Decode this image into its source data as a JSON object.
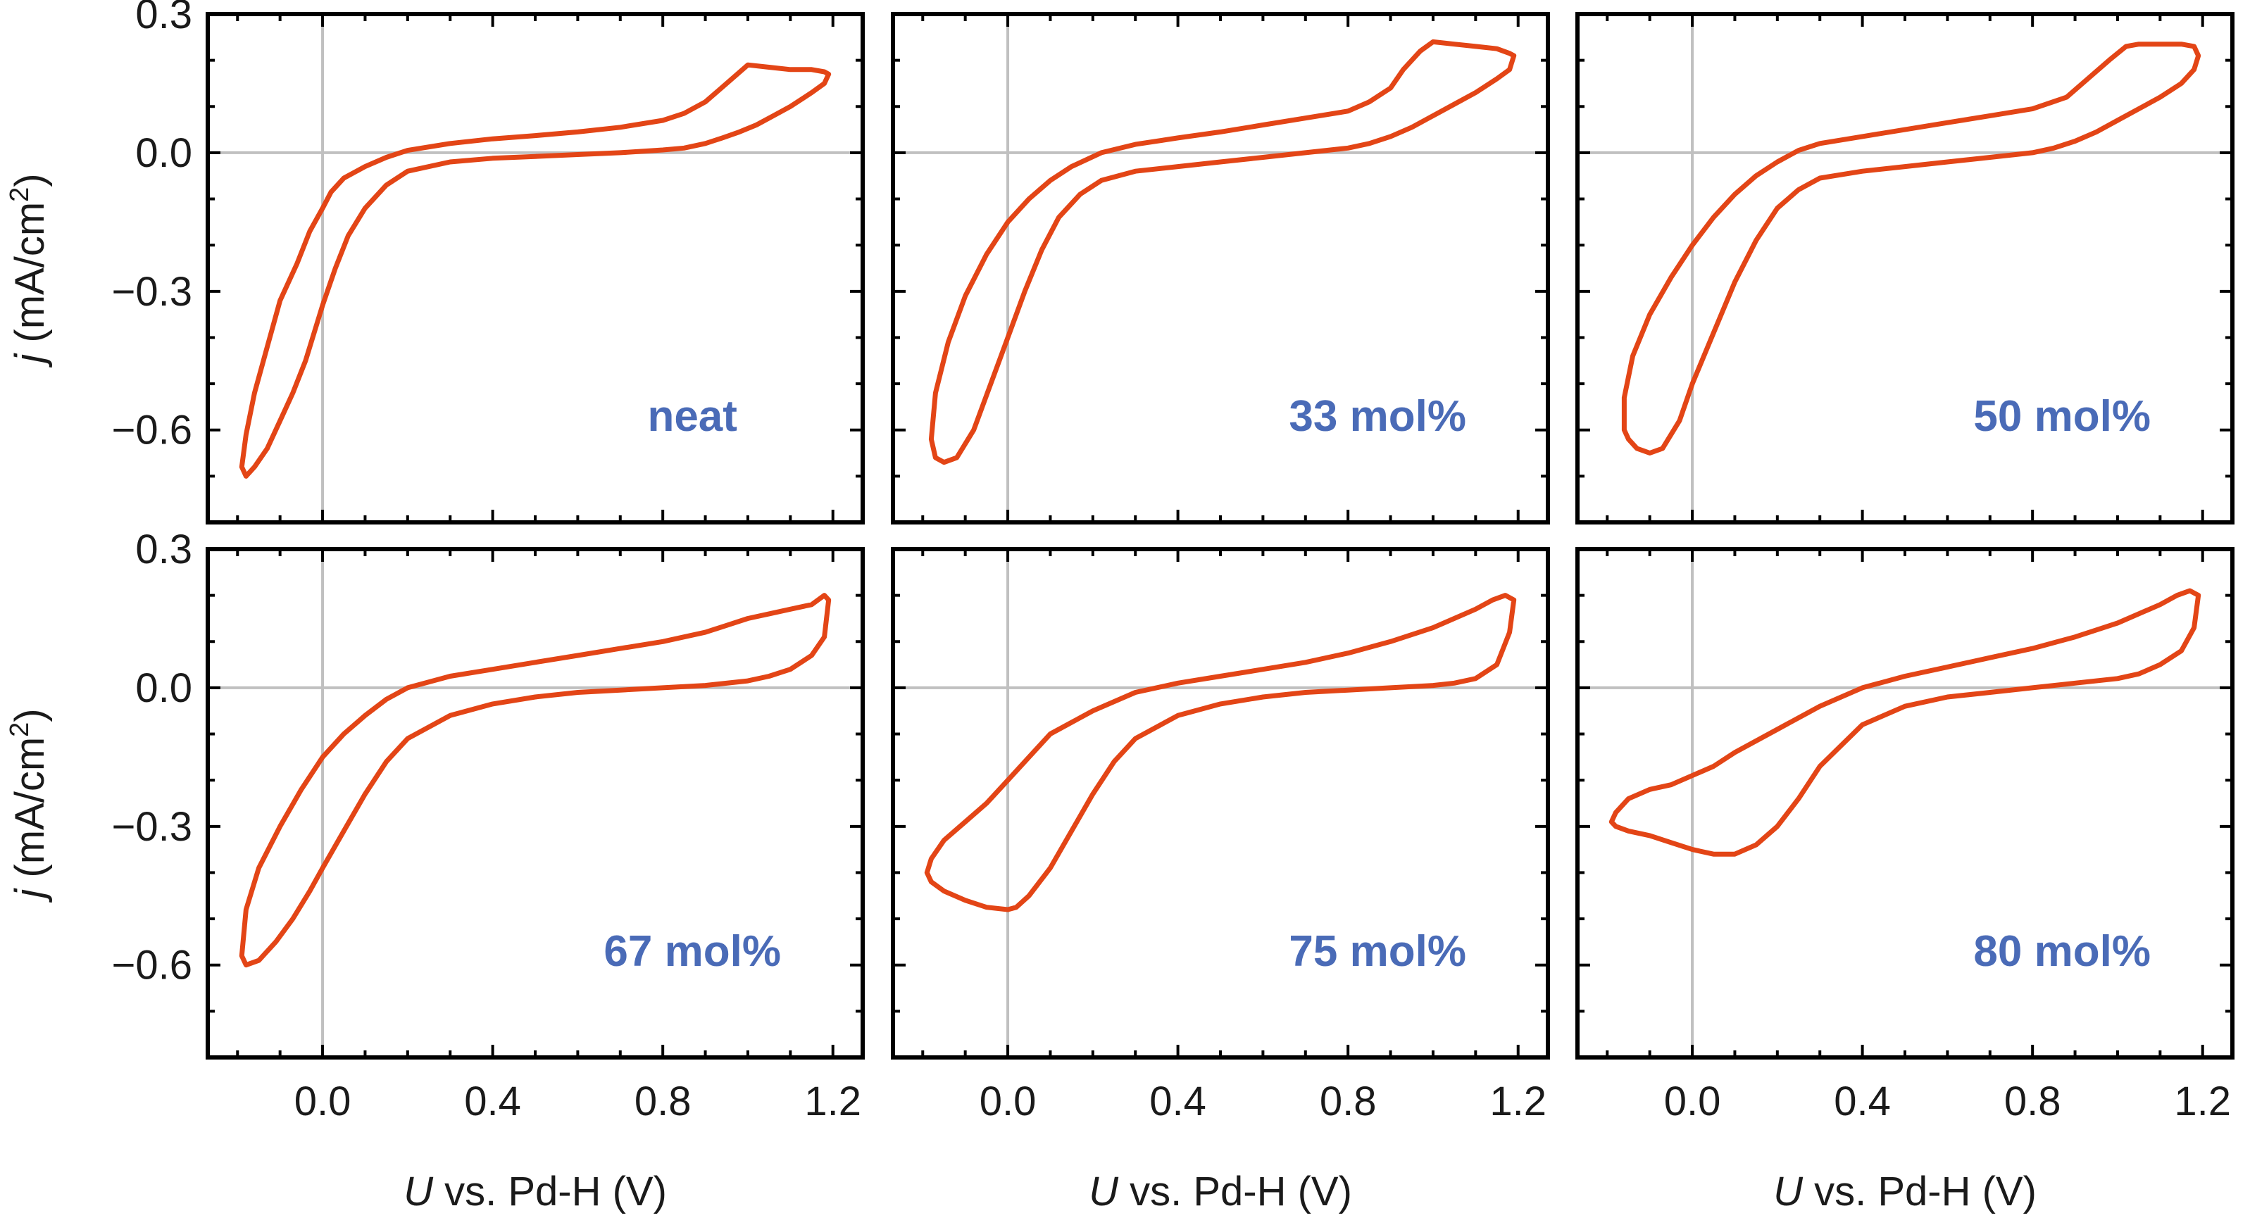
{
  "chart_data": {
    "type": "line",
    "layout": "2x3 panel grid, shared axes",
    "xlabel_italic": "U",
    "xlabel_rest": " vs. Pd-H (V)",
    "ylabel_italic": "j",
    "ylabel_rest": " (mA/cm",
    "ylabel_sup": "2",
    "ylabel_close": ")",
    "xlim": [
      -0.27,
      1.27
    ],
    "ylim": [
      -0.8,
      0.3
    ],
    "xticks": [
      0.0,
      0.4,
      0.8,
      1.2
    ],
    "xtick_labels": [
      "0.0",
      "0.4",
      "0.8",
      "1.2"
    ],
    "yticks": [
      0.3,
      0.0,
      -0.3,
      -0.6
    ],
    "ytick_labels": [
      "0.3",
      "0.0",
      "−0.3",
      "−0.6"
    ],
    "reference_lines": {
      "x": 0.0,
      "y": 0.0
    },
    "line_color": "#e34516",
    "label_color": "#4a6bb7",
    "panels": [
      {
        "label": "neat",
        "x": [
          -0.19,
          -0.18,
          -0.16,
          -0.13,
          -0.1,
          -0.07,
          -0.04,
          -0.02,
          0.0,
          0.03,
          0.06,
          0.1,
          0.15,
          0.2,
          0.3,
          0.4,
          0.5,
          0.6,
          0.7,
          0.8,
          0.85,
          0.9,
          0.94,
          0.98,
          1.02,
          1.06,
          1.1,
          1.15,
          1.18,
          1.19,
          1.18,
          1.15,
          1.1,
          1.05,
          1.0,
          0.95,
          0.9,
          0.85,
          0.8,
          0.7,
          0.6,
          0.5,
          0.4,
          0.3,
          0.2,
          0.15,
          0.1,
          0.05,
          0.02,
          0.0,
          -0.03,
          -0.06,
          -0.1,
          -0.13,
          -0.16,
          -0.18,
          -0.19
        ],
        "y": [
          -0.68,
          -0.7,
          -0.68,
          -0.64,
          -0.58,
          -0.52,
          -0.45,
          -0.39,
          -0.33,
          -0.25,
          -0.18,
          -0.12,
          -0.07,
          -0.04,
          -0.02,
          -0.012,
          -0.008,
          -0.004,
          0.0,
          0.006,
          0.01,
          0.02,
          0.032,
          0.045,
          0.06,
          0.08,
          0.1,
          0.13,
          0.15,
          0.17,
          0.175,
          0.18,
          0.18,
          0.185,
          0.19,
          0.15,
          0.11,
          0.085,
          0.07,
          0.055,
          0.045,
          0.037,
          0.03,
          0.02,
          0.005,
          -0.01,
          -0.03,
          -0.055,
          -0.085,
          -0.12,
          -0.17,
          -0.24,
          -0.32,
          -0.42,
          -0.52,
          -0.61,
          -0.68
        ]
      },
      {
        "label": "33 mol%",
        "x": [
          -0.18,
          -0.17,
          -0.15,
          -0.12,
          -0.08,
          -0.04,
          0.0,
          0.04,
          0.08,
          0.12,
          0.17,
          0.22,
          0.3,
          0.4,
          0.5,
          0.6,
          0.7,
          0.8,
          0.85,
          0.9,
          0.95,
          1.0,
          1.05,
          1.1,
          1.15,
          1.18,
          1.19,
          1.18,
          1.15,
          1.1,
          1.05,
          1.0,
          0.97,
          0.93,
          0.9,
          0.85,
          0.8,
          0.7,
          0.6,
          0.5,
          0.4,
          0.3,
          0.22,
          0.15,
          0.1,
          0.05,
          0.0,
          -0.05,
          -0.1,
          -0.14,
          -0.17,
          -0.18
        ],
        "y": [
          -0.62,
          -0.66,
          -0.67,
          -0.66,
          -0.6,
          -0.5,
          -0.4,
          -0.3,
          -0.21,
          -0.14,
          -0.09,
          -0.06,
          -0.04,
          -0.03,
          -0.02,
          -0.01,
          0.0,
          0.01,
          0.02,
          0.035,
          0.055,
          0.08,
          0.105,
          0.13,
          0.16,
          0.18,
          0.21,
          0.215,
          0.225,
          0.23,
          0.235,
          0.24,
          0.22,
          0.18,
          0.14,
          0.11,
          0.09,
          0.075,
          0.06,
          0.045,
          0.032,
          0.018,
          0.0,
          -0.03,
          -0.06,
          -0.1,
          -0.15,
          -0.22,
          -0.31,
          -0.41,
          -0.52,
          -0.62
        ]
      },
      {
        "label": "50 mol%",
        "x": [
          -0.16,
          -0.15,
          -0.13,
          -0.1,
          -0.07,
          -0.03,
          0.0,
          0.05,
          0.1,
          0.15,
          0.2,
          0.25,
          0.3,
          0.4,
          0.5,
          0.6,
          0.7,
          0.8,
          0.85,
          0.9,
          0.95,
          1.0,
          1.05,
          1.1,
          1.15,
          1.18,
          1.19,
          1.18,
          1.15,
          1.1,
          1.05,
          1.02,
          0.98,
          0.93,
          0.88,
          0.8,
          0.7,
          0.6,
          0.5,
          0.4,
          0.3,
          0.25,
          0.2,
          0.15,
          0.1,
          0.05,
          0.0,
          -0.05,
          -0.1,
          -0.14,
          -0.16,
          -0.16
        ],
        "y": [
          -0.6,
          -0.62,
          -0.64,
          -0.65,
          -0.64,
          -0.58,
          -0.5,
          -0.39,
          -0.28,
          -0.19,
          -0.12,
          -0.08,
          -0.055,
          -0.04,
          -0.03,
          -0.02,
          -0.01,
          0.0,
          0.01,
          0.025,
          0.045,
          0.07,
          0.095,
          0.12,
          0.15,
          0.18,
          0.21,
          0.23,
          0.235,
          0.235,
          0.235,
          0.23,
          0.2,
          0.16,
          0.12,
          0.095,
          0.08,
          0.065,
          0.05,
          0.035,
          0.02,
          0.005,
          -0.02,
          -0.05,
          -0.09,
          -0.14,
          -0.2,
          -0.27,
          -0.35,
          -0.44,
          -0.53,
          -0.6
        ]
      },
      {
        "label": "67 mol%",
        "x": [
          -0.19,
          -0.18,
          -0.15,
          -0.11,
          -0.07,
          -0.03,
          0.0,
          0.05,
          0.1,
          0.15,
          0.2,
          0.3,
          0.4,
          0.5,
          0.6,
          0.7,
          0.8,
          0.9,
          1.0,
          1.05,
          1.1,
          1.15,
          1.18,
          1.19,
          1.18,
          1.15,
          1.1,
          1.05,
          1.0,
          0.95,
          0.9,
          0.8,
          0.7,
          0.6,
          0.5,
          0.4,
          0.3,
          0.2,
          0.15,
          0.1,
          0.05,
          0.0,
          -0.05,
          -0.1,
          -0.15,
          -0.18,
          -0.19
        ],
        "y": [
          -0.58,
          -0.6,
          -0.59,
          -0.55,
          -0.5,
          -0.44,
          -0.39,
          -0.31,
          -0.23,
          -0.16,
          -0.11,
          -0.06,
          -0.035,
          -0.02,
          -0.01,
          -0.005,
          0.0,
          0.005,
          0.015,
          0.025,
          0.04,
          0.07,
          0.11,
          0.19,
          0.2,
          0.18,
          0.17,
          0.16,
          0.15,
          0.135,
          0.12,
          0.1,
          0.085,
          0.07,
          0.055,
          0.04,
          0.025,
          0.0,
          -0.025,
          -0.06,
          -0.1,
          -0.15,
          -0.22,
          -0.3,
          -0.39,
          -0.48,
          -0.58
        ]
      },
      {
        "label": "75 mol%",
        "x": [
          -0.19,
          -0.18,
          -0.15,
          -0.1,
          -0.05,
          0.0,
          0.02,
          0.05,
          0.1,
          0.15,
          0.2,
          0.25,
          0.3,
          0.4,
          0.5,
          0.6,
          0.7,
          0.8,
          0.9,
          1.0,
          1.05,
          1.1,
          1.15,
          1.18,
          1.19,
          1.17,
          1.14,
          1.1,
          1.0,
          0.9,
          0.8,
          0.7,
          0.6,
          0.5,
          0.4,
          0.3,
          0.2,
          0.1,
          0.05,
          0.0,
          -0.05,
          -0.1,
          -0.15,
          -0.18,
          -0.19
        ],
        "y": [
          -0.4,
          -0.42,
          -0.44,
          -0.46,
          -0.475,
          -0.48,
          -0.475,
          -0.45,
          -0.39,
          -0.31,
          -0.23,
          -0.16,
          -0.11,
          -0.06,
          -0.035,
          -0.02,
          -0.01,
          -0.005,
          0.0,
          0.005,
          0.01,
          0.02,
          0.05,
          0.12,
          0.19,
          0.2,
          0.19,
          0.17,
          0.13,
          0.1,
          0.075,
          0.055,
          0.04,
          0.025,
          0.01,
          -0.01,
          -0.05,
          -0.1,
          -0.15,
          -0.2,
          -0.25,
          -0.29,
          -0.33,
          -0.37,
          -0.4
        ]
      },
      {
        "label": "80 mol%",
        "x": [
          -0.19,
          -0.18,
          -0.15,
          -0.1,
          -0.05,
          0.0,
          0.05,
          0.1,
          0.15,
          0.2,
          0.25,
          0.3,
          0.4,
          0.5,
          0.6,
          0.7,
          0.8,
          0.9,
          1.0,
          1.05,
          1.1,
          1.15,
          1.18,
          1.19,
          1.17,
          1.14,
          1.1,
          1.0,
          0.9,
          0.8,
          0.7,
          0.6,
          0.5,
          0.4,
          0.3,
          0.2,
          0.1,
          0.05,
          0.0,
          -0.05,
          -0.1,
          -0.15,
          -0.18,
          -0.19
        ],
        "y": [
          -0.29,
          -0.3,
          -0.31,
          -0.32,
          -0.335,
          -0.35,
          -0.36,
          -0.36,
          -0.34,
          -0.3,
          -0.24,
          -0.17,
          -0.08,
          -0.04,
          -0.02,
          -0.01,
          0.0,
          0.01,
          0.02,
          0.03,
          0.05,
          0.08,
          0.13,
          0.2,
          0.21,
          0.2,
          0.18,
          0.14,
          0.11,
          0.085,
          0.065,
          0.045,
          0.025,
          0.0,
          -0.04,
          -0.09,
          -0.14,
          -0.17,
          -0.19,
          -0.21,
          -0.22,
          -0.24,
          -0.27,
          -0.29
        ]
      }
    ]
  }
}
